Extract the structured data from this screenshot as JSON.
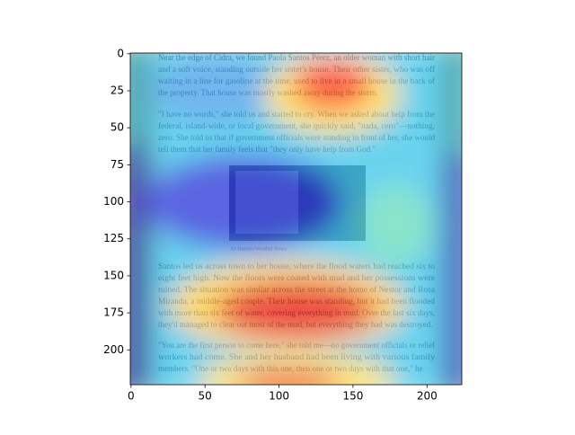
{
  "chart_data": {
    "type": "image",
    "xlim": [
      -0.5,
      223.5
    ],
    "ylim": [
      223.5,
      -0.5
    ],
    "xticks": [
      0,
      50,
      100,
      150,
      200
    ],
    "yticks": [
      0,
      25,
      50,
      75,
      100,
      125,
      150,
      175,
      200
    ],
    "document": {
      "paragraphs": [
        [
          "Near the edge of Cidra, we found Paola Santos Pérez, an older woman with short hair",
          "and a soft voice, standing outside her sister's house. Their other sister, who was off",
          "waiting in a line for gasoline at the time, used to live in a small house in the back of",
          "the property. That house was mostly washed away during the storm."
        ],
        [
          "\"I have no words,\" she told us and started to cry. When we asked about help from the",
          "federal, island-wide, or local government, she quickly said, \"nada, cero\"—nothing,",
          "zero. She told us that if government officials were standing in front of her, she would",
          "tell them that her family feels that \"they only have help from God.\""
        ],
        [
          "Santos led us across town to her house, where the flood waters had reached six to",
          "eight feet high. Now the floors were coated with mud and her possessions were",
          "ruined. The situation was similar across the street at the home of Nestor and Rosa",
          "Miranda, a middle-aged couple. Their house was standing, but it had been flooded",
          "with more than six feet of water, covering everything in mud. Over the last six days,",
          "they'd managed to clear out most of the mud, but everything they had was destroyed."
        ],
        [
          "\"You are the first person to come here,\" she told me—no government officials or relief",
          "workers had come. She and her husband had been living with various family",
          "members. \"One or two days with this one, then one or two days with that one,\" he"
        ]
      ],
      "caption": "AJ Hansen/Weather News"
    }
  }
}
